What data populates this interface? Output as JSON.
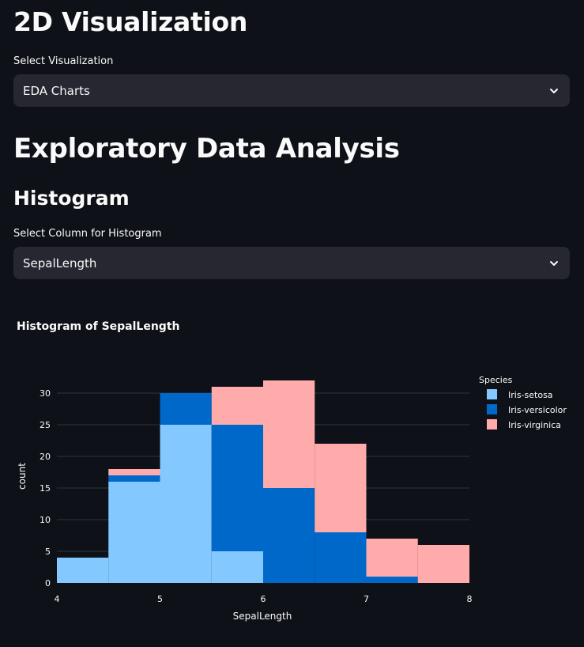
{
  "page": {
    "title": "2D Visualization",
    "viz_select": {
      "label": "Select Visualization",
      "value": "EDA Charts"
    },
    "section_title": "Exploratory Data Analysis",
    "subsection_title": "Histogram",
    "column_select": {
      "label": "Select Column for Histogram",
      "value": "SepalLength"
    }
  },
  "colors": {
    "background": "#0e1117",
    "select_bg": "#262730",
    "setosa": "#83c9ff",
    "versicolor": "#0068c9",
    "virginica": "#ffabab"
  },
  "chart_data": {
    "type": "bar",
    "title": "Histogram of SepalLength",
    "xlabel": "SepalLength",
    "ylabel": "count",
    "xlim": [
      4,
      8
    ],
    "ylim": [
      0,
      32
    ],
    "xticks": [
      4,
      5,
      6,
      7,
      8
    ],
    "yticks": [
      0,
      5,
      10,
      15,
      20,
      25,
      30
    ],
    "bin_edges": [
      4,
      4.5,
      5,
      5.5,
      6,
      6.5,
      7,
      7.5,
      8
    ],
    "stacked": true,
    "legend": {
      "title": "Species",
      "position": "top-right"
    },
    "series": [
      {
        "name": "Iris-setosa",
        "color": "#83c9ff",
        "values": [
          4,
          16,
          25,
          5,
          0,
          0,
          0,
          0
        ]
      },
      {
        "name": "Iris-versicolor",
        "color": "#0068c9",
        "values": [
          0,
          1,
          5,
          20,
          15,
          8,
          1,
          0
        ]
      },
      {
        "name": "Iris-virginica",
        "color": "#ffabab",
        "values": [
          0,
          1,
          0,
          6,
          17,
          14,
          6,
          6
        ]
      }
    ]
  }
}
